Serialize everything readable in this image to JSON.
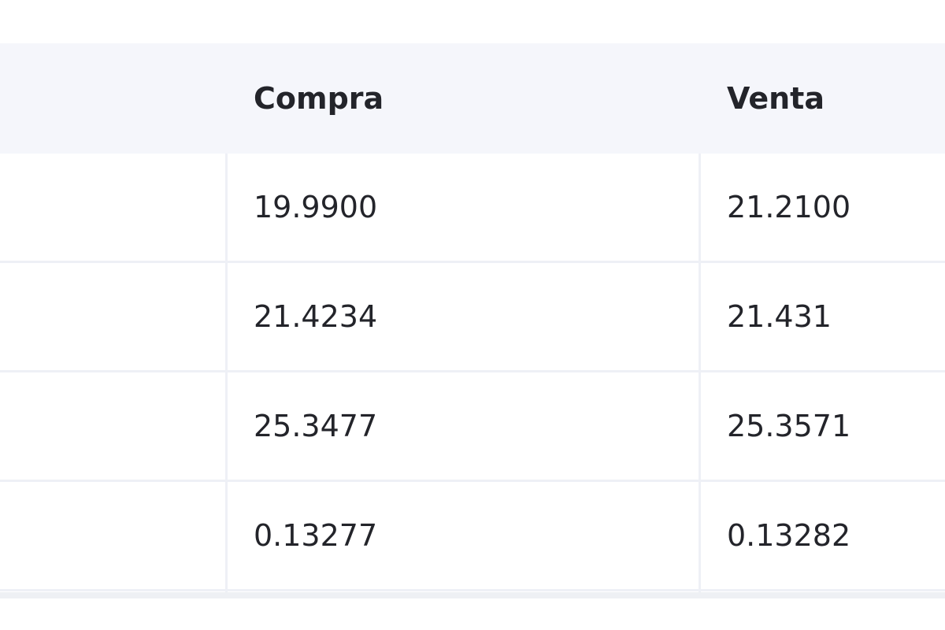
{
  "table": {
    "headers": [
      "Compra",
      "Venta"
    ],
    "rows": [
      [
        "19.9900",
        "21.2100"
      ],
      [
        "21.4234",
        "21.431"
      ],
      [
        "25.3477",
        "25.3571"
      ],
      [
        "0.13277",
        "0.13282"
      ]
    ]
  }
}
